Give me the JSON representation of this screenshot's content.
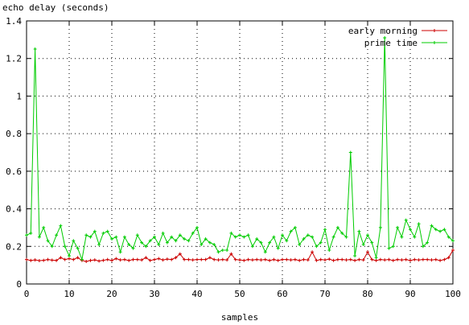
{
  "chart_data": {
    "type": "line",
    "title": "",
    "ylabel": "echo delay (seconds)",
    "xlabel": "samples",
    "xlim": [
      0,
      100
    ],
    "ylim": [
      0,
      1.4
    ],
    "xticks": [
      0,
      10,
      20,
      30,
      40,
      50,
      60,
      70,
      80,
      90,
      100
    ],
    "yticks": [
      0,
      0.2,
      0.4,
      0.6,
      0.8,
      1,
      1.2,
      1.4
    ],
    "grid": true,
    "legend_position": "top-right",
    "series": [
      {
        "name": "early morning",
        "color": "#cc0000",
        "marker": "plus",
        "x": [
          0,
          1,
          2,
          3,
          4,
          5,
          6,
          7,
          8,
          9,
          10,
          11,
          12,
          13,
          14,
          15,
          16,
          17,
          18,
          19,
          20,
          21,
          22,
          23,
          24,
          25,
          26,
          27,
          28,
          29,
          30,
          31,
          32,
          33,
          34,
          35,
          36,
          37,
          38,
          39,
          40,
          41,
          42,
          43,
          44,
          45,
          46,
          47,
          48,
          49,
          50,
          51,
          52,
          53,
          54,
          55,
          56,
          57,
          58,
          59,
          60,
          61,
          62,
          63,
          64,
          65,
          66,
          67,
          68,
          69,
          70,
          71,
          72,
          73,
          74,
          75,
          76,
          77,
          78,
          79,
          80,
          81,
          82,
          83,
          84,
          85,
          86,
          87,
          88,
          89,
          90,
          91,
          92,
          93,
          94,
          95,
          96,
          97,
          98,
          99,
          100
        ],
        "values": [
          0.13,
          0.125,
          0.128,
          0.124,
          0.126,
          0.13,
          0.127,
          0.125,
          0.14,
          0.13,
          0.135,
          0.13,
          0.14,
          0.125,
          0.12,
          0.125,
          0.128,
          0.122,
          0.126,
          0.13,
          0.125,
          0.135,
          0.128,
          0.13,
          0.125,
          0.13,
          0.13,
          0.128,
          0.14,
          0.125,
          0.13,
          0.135,
          0.128,
          0.132,
          0.13,
          0.14,
          0.16,
          0.13,
          0.13,
          0.128,
          0.13,
          0.13,
          0.13,
          0.14,
          0.13,
          0.128,
          0.13,
          0.128,
          0.16,
          0.13,
          0.128,
          0.125,
          0.13,
          0.128,
          0.13,
          0.128,
          0.13,
          0.125,
          0.13,
          0.125,
          0.13,
          0.13,
          0.128,
          0.13,
          0.125,
          0.13,
          0.128,
          0.17,
          0.125,
          0.13,
          0.128,
          0.132,
          0.125,
          0.13,
          0.13,
          0.128,
          0.13,
          0.125,
          0.13,
          0.128,
          0.17,
          0.13,
          0.125,
          0.13,
          0.128,
          0.13,
          0.125,
          0.13,
          0.128,
          0.13,
          0.125,
          0.13,
          0.128,
          0.13,
          0.13,
          0.128,
          0.13,
          0.125,
          0.13,
          0.14,
          0.18
        ]
      },
      {
        "name": "prime time",
        "color": "#00cc00",
        "marker": "plus",
        "x": [
          0,
          1,
          2,
          3,
          4,
          5,
          6,
          7,
          8,
          9,
          10,
          11,
          12,
          13,
          14,
          15,
          16,
          17,
          18,
          19,
          20,
          21,
          22,
          23,
          24,
          25,
          26,
          27,
          28,
          29,
          30,
          31,
          32,
          33,
          34,
          35,
          36,
          37,
          38,
          39,
          40,
          41,
          42,
          43,
          44,
          45,
          46,
          47,
          48,
          49,
          50,
          51,
          52,
          53,
          54,
          55,
          56,
          57,
          58,
          59,
          60,
          61,
          62,
          63,
          64,
          65,
          66,
          67,
          68,
          69,
          70,
          71,
          72,
          73,
          74,
          75,
          76,
          77,
          78,
          79,
          80,
          81,
          82,
          83,
          84,
          85,
          86,
          87,
          88,
          89,
          90,
          91,
          92,
          93,
          94,
          95,
          96,
          97,
          98,
          99,
          100
        ],
        "values": [
          0.26,
          0.27,
          1.25,
          0.25,
          0.3,
          0.23,
          0.2,
          0.26,
          0.31,
          0.2,
          0.15,
          0.23,
          0.19,
          0.13,
          0.26,
          0.25,
          0.28,
          0.21,
          0.27,
          0.28,
          0.24,
          0.25,
          0.17,
          0.25,
          0.21,
          0.19,
          0.26,
          0.22,
          0.2,
          0.23,
          0.25,
          0.21,
          0.27,
          0.22,
          0.25,
          0.23,
          0.26,
          0.24,
          0.23,
          0.27,
          0.3,
          0.21,
          0.24,
          0.22,
          0.21,
          0.17,
          0.18,
          0.18,
          0.27,
          0.25,
          0.26,
          0.25,
          0.26,
          0.2,
          0.24,
          0.22,
          0.17,
          0.22,
          0.25,
          0.19,
          0.26,
          0.23,
          0.28,
          0.3,
          0.21,
          0.24,
          0.26,
          0.25,
          0.2,
          0.22,
          0.29,
          0.18,
          0.25,
          0.3,
          0.27,
          0.25,
          0.7,
          0.15,
          0.28,
          0.21,
          0.26,
          0.22,
          0.14,
          0.3,
          1.31,
          0.19,
          0.2,
          0.3,
          0.25,
          0.34,
          0.29,
          0.25,
          0.32,
          0.2,
          0.22,
          0.31,
          0.29,
          0.28,
          0.29,
          0.25,
          0.23
        ]
      }
    ]
  }
}
